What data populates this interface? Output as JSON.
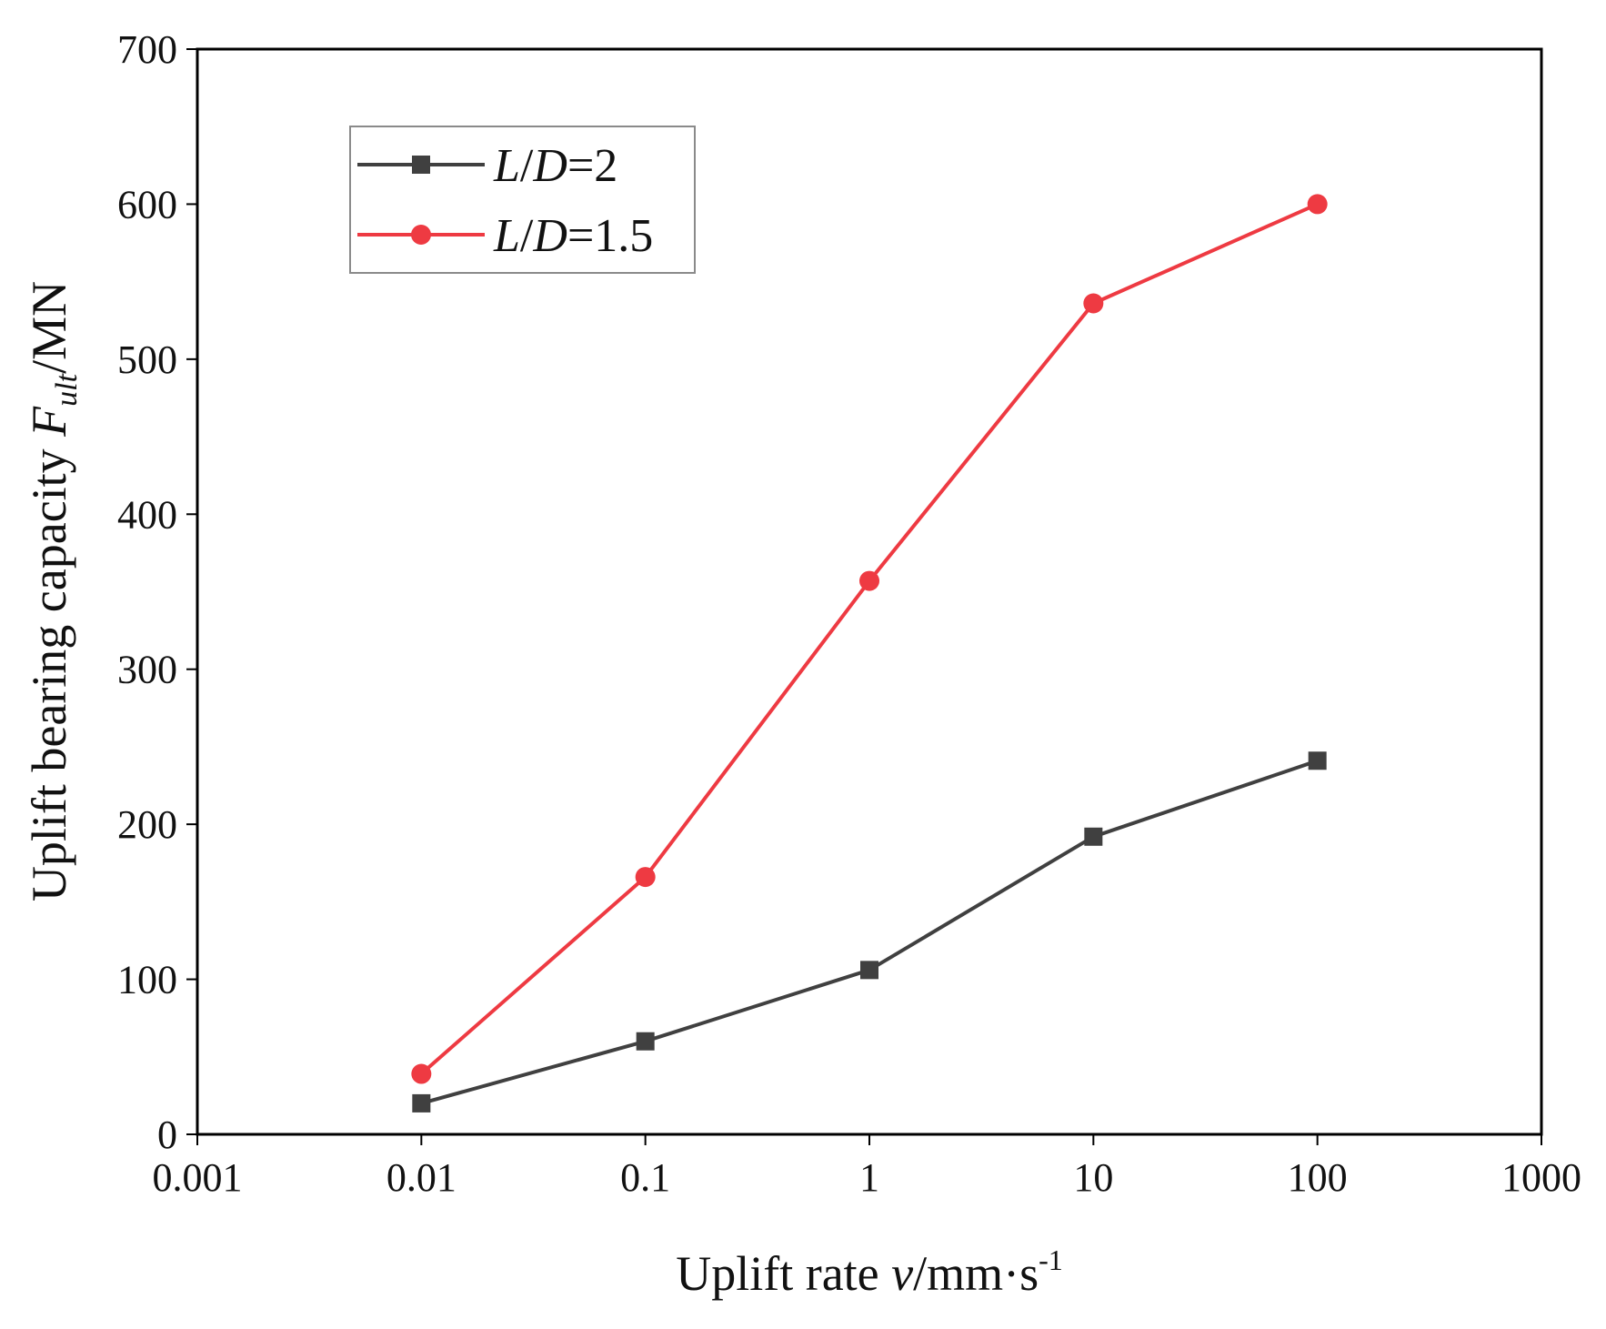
{
  "chart_data": {
    "type": "line",
    "title": "",
    "x_scale": "log",
    "xlim": [
      0.001,
      1000
    ],
    "ylim": [
      0,
      700
    ],
    "x_ticks": [
      0.001,
      0.01,
      0.1,
      1,
      10,
      100,
      1000
    ],
    "x_tick_labels": [
      "0.001",
      "0.01",
      "0.1",
      "1",
      "10",
      "100",
      "1000"
    ],
    "y_ticks": [
      0,
      100,
      200,
      300,
      400,
      500,
      600,
      700
    ],
    "y_tick_labels": [
      "0",
      "100",
      "200",
      "300",
      "400",
      "500",
      "600",
      "700"
    ],
    "xlabel": {
      "pre": "Uplift rate ",
      "var": "v",
      "mid": "/mm·s",
      "sup": "-1"
    },
    "ylabel": {
      "pre": "Uplift bearing capacity ",
      "var": "F",
      "sub": "ult",
      "post": "/MN"
    },
    "grid": false,
    "legend_position": "top-left",
    "x": [
      0.01,
      0.1,
      1,
      10,
      100
    ],
    "series": [
      {
        "name": "L/D=2",
        "color": "#404040",
        "marker": "square",
        "values": [
          20,
          60,
          106,
          192,
          241
        ],
        "legend": {
          "a": "L",
          "b": "/",
          "c": "D",
          "d": "=2"
        }
      },
      {
        "name": "L/D=1.5",
        "color": "#ee3a42",
        "marker": "circle",
        "values": [
          39,
          166,
          357,
          536,
          600
        ],
        "legend": {
          "a": "L",
          "b": "/",
          "c": "D",
          "d": "=1.5"
        }
      }
    ]
  }
}
